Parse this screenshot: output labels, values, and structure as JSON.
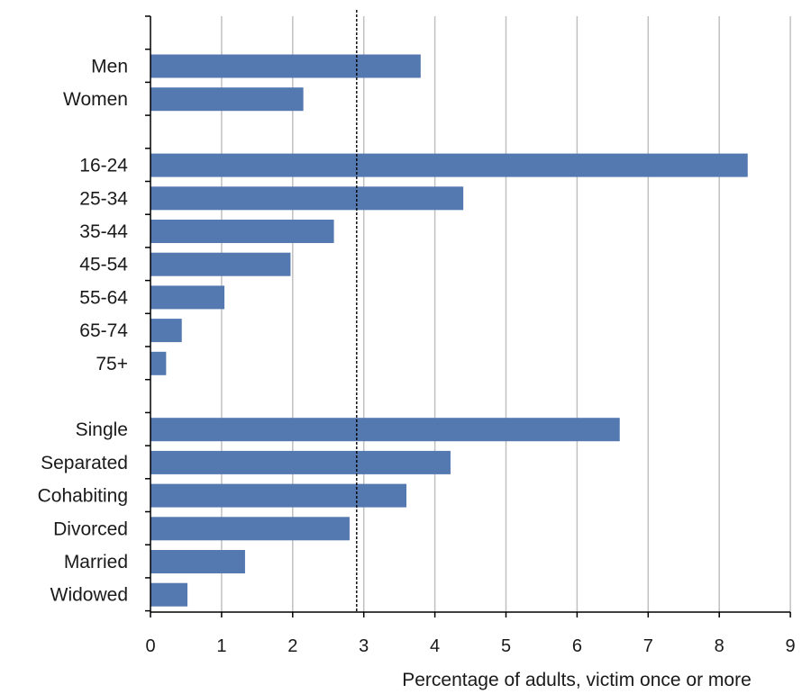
{
  "chart_data": {
    "type": "bar",
    "orientation": "horizontal",
    "categories": [
      "Men",
      "Women",
      "",
      "16-24",
      "25-34",
      "35-44",
      "45-54",
      "55-64",
      "65-74",
      "75+",
      "",
      "Single",
      "Separated",
      "Cohabiting",
      "Divorced",
      "Married",
      "Widowed"
    ],
    "values": [
      3.8,
      2.15,
      null,
      8.4,
      4.4,
      2.58,
      1.97,
      1.04,
      0.44,
      0.22,
      null,
      6.6,
      4.22,
      3.6,
      2.8,
      1.33,
      0.52
    ],
    "reference_line": 2.9,
    "xlabel": "Percentage of adults, victim once or more",
    "ylabel": "",
    "xlim": [
      0,
      9
    ],
    "xticks": [
      0,
      1,
      2,
      3,
      4,
      5,
      6,
      7,
      8,
      9
    ],
    "grid": "vertical",
    "legend": "none",
    "colors": {
      "bar": "#5478b0",
      "grid": "#c0c0c0",
      "reference_line": "#000000"
    }
  }
}
